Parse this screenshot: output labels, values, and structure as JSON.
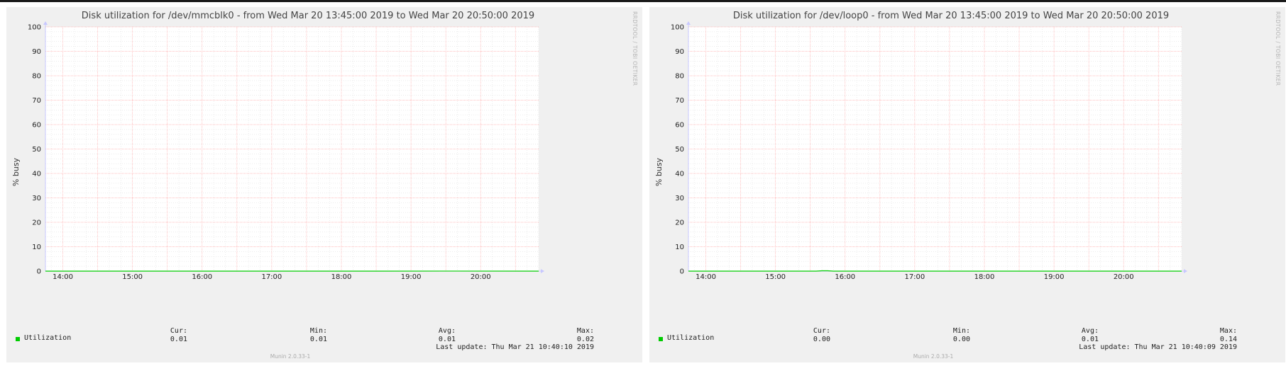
{
  "colors": {
    "accent": "#00cc00",
    "major_grid": "#ffaaaa",
    "minor_grid": "#e0e0e0",
    "background": "#f0f0f0"
  },
  "common": {
    "ylabel": "% busy",
    "watermark": "RRDTOOL / TOBI OETIKER",
    "version": "Munin 2.0.33-1"
  },
  "chart_data": [
    {
      "type": "line",
      "title": "Disk utilization for /dev/mmcblk0 - from Wed Mar 20 13:45:00 2019 to Wed Mar 20 20:50:00 2019",
      "ylabel": "% busy",
      "ylim": [
        0,
        100
      ],
      "yticks": [
        "0",
        "10",
        "20",
        "30",
        "40",
        "50",
        "60",
        "70",
        "80",
        "90",
        "100"
      ],
      "xticks": [
        "14:00",
        "15:00",
        "16:00",
        "17:00",
        "18:00",
        "19:00",
        "20:00"
      ],
      "xlim": [
        "13:45",
        "20:50"
      ],
      "grid": true,
      "series": [
        {
          "name": "Utilization",
          "color": "#00cc00",
          "x": [
            "13:45",
            "14:30",
            "15:30",
            "16:30",
            "17:30",
            "18:30",
            "19:30",
            "20:50"
          ],
          "values": [
            0.01,
            0.01,
            0.01,
            0.01,
            0.01,
            0.01,
            0.02,
            0.01
          ]
        }
      ],
      "stats": {
        "cur_label": "Cur:",
        "cur": "0.01",
        "min_label": "Min:",
        "min": "0.01",
        "avg_label": "Avg:",
        "avg": "0.01",
        "max_label": "Max:",
        "max": "0.02"
      },
      "last_update": "Last update: Thu Mar 21 10:40:10 2019"
    },
    {
      "type": "line",
      "title": "Disk utilization for /dev/loop0 - from Wed Mar 20 13:45:00 2019 to Wed Mar 20 20:50:00 2019",
      "ylabel": "% busy",
      "ylim": [
        0,
        100
      ],
      "yticks": [
        "0",
        "10",
        "20",
        "30",
        "40",
        "50",
        "60",
        "70",
        "80",
        "90",
        "100"
      ],
      "xticks": [
        "14:00",
        "15:00",
        "16:00",
        "17:00",
        "18:00",
        "19:00",
        "20:00"
      ],
      "xlim": [
        "13:45",
        "20:50"
      ],
      "grid": true,
      "series": [
        {
          "name": "Utilization",
          "color": "#00cc00",
          "x": [
            "13:45",
            "15:20",
            "15:35",
            "15:40",
            "15:45",
            "15:50",
            "16:00",
            "20:50"
          ],
          "values": [
            0.0,
            0.0,
            0.0,
            0.14,
            0.14,
            0.0,
            0.0,
            0.0
          ]
        }
      ],
      "stats": {
        "cur_label": "Cur:",
        "cur": "0.00",
        "min_label": "Min:",
        "min": "0.00",
        "avg_label": "Avg:",
        "avg": "0.01",
        "max_label": "Max:",
        "max": "0.14"
      },
      "last_update": "Last update: Thu Mar 21 10:40:09 2019"
    }
  ]
}
